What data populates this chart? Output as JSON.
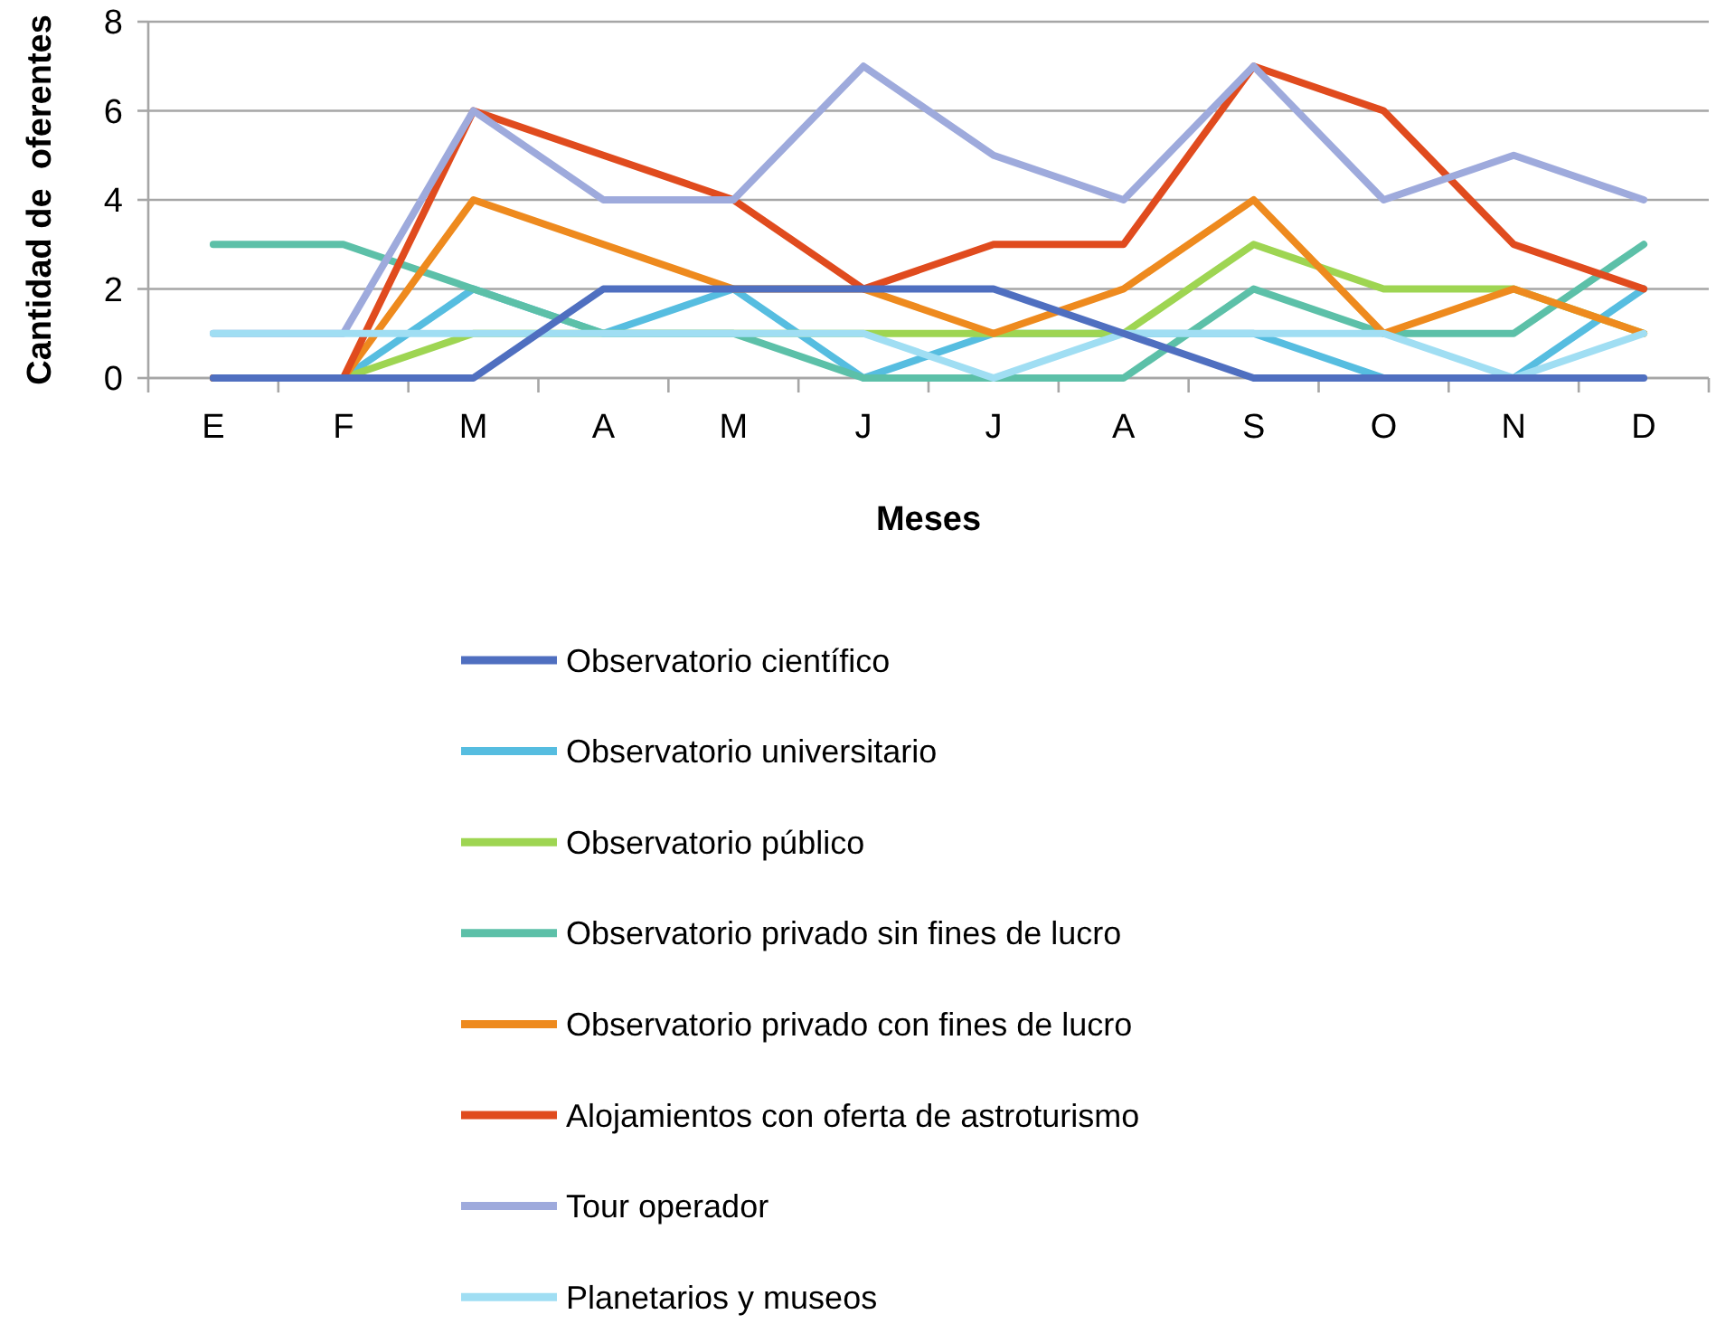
{
  "chart_data": {
    "type": "line",
    "xlabel": "Meses",
    "ylabel": "Cantidad de  oferentes",
    "categories": [
      "E",
      "F",
      "M",
      "A",
      "M",
      "J",
      "J",
      "A",
      "S",
      "O",
      "N",
      "D"
    ],
    "ylim": [
      0,
      8
    ],
    "yticks": [
      0,
      2,
      4,
      6,
      8
    ],
    "grid": "y",
    "legend": "bottom",
    "line_style": "solid",
    "marker": "none",
    "series": [
      {
        "name": "Observatorio científico",
        "color": "#4f6fc0",
        "values": [
          0,
          0,
          0,
          2,
          2,
          2,
          2,
          1,
          0,
          0,
          0,
          0
        ]
      },
      {
        "name": "Observatorio universitario",
        "color": "#56bde0",
        "values": [
          0,
          0,
          2,
          1,
          2,
          0,
          1,
          1,
          1,
          0,
          0,
          2
        ]
      },
      {
        "name": "Observatorio público",
        "color": "#9ed552",
        "values": [
          0,
          0,
          1,
          1,
          1,
          1,
          1,
          1,
          3,
          2,
          2,
          1
        ]
      },
      {
        "name": "Observatorio privado sin fines de lucro",
        "color": "#5cc0a8",
        "values": [
          3,
          3,
          2,
          1,
          1,
          0,
          0,
          0,
          2,
          1,
          1,
          3
        ]
      },
      {
        "name": "Observatorio privado con fines de lucro",
        "color": "#ee8a1e",
        "values": [
          0,
          0,
          4,
          3,
          2,
          2,
          1,
          2,
          4,
          1,
          2,
          1
        ]
      },
      {
        "name": "Alojamientos con oferta de astroturismo",
        "color": "#e04b1e",
        "values": [
          0,
          0,
          6,
          5,
          4,
          2,
          3,
          3,
          7,
          6,
          3,
          2
        ]
      },
      {
        "name": "Tour operador",
        "color": "#9eaadc",
        "values": [
          1,
          1,
          6,
          4,
          4,
          7,
          5,
          4,
          7,
          4,
          5,
          4
        ]
      },
      {
        "name": "Planetarios y museos",
        "color": "#a0def3",
        "values": [
          1,
          1,
          1,
          1,
          1,
          1,
          0,
          1,
          1,
          1,
          0,
          1
        ]
      }
    ]
  }
}
